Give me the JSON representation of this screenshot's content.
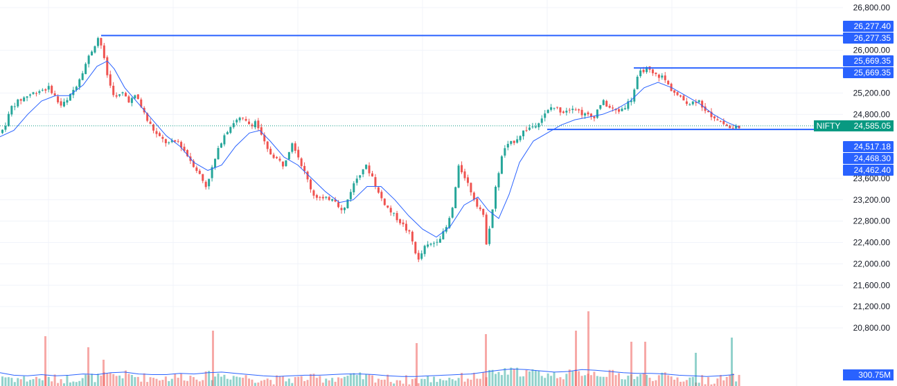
{
  "chart_data": {
    "type": "candlestick",
    "symbol": "NIFTY",
    "last_price": 24585.05,
    "y_ticks": [
      "26,800.00",
      "26,000.00",
      "25,200.00",
      "24,800.00",
      "23,600.00",
      "23,200.00",
      "22,800.00",
      "22,400.00",
      "22,000.00",
      "21,600.00",
      "21,200.00",
      "20,800.00"
    ],
    "y_tick_values": [
      26800,
      26000,
      25200,
      24800,
      23600,
      23200,
      22800,
      22400,
      22000,
      21600,
      21200,
      20800
    ],
    "ylim": [
      20450,
      26950
    ],
    "horizontal_lines": [
      {
        "value": 26277.35,
        "label": "26,277.35"
      },
      {
        "value": 25669.35,
        "label": "25,669.35"
      },
      {
        "value": 24517.18,
        "label": "24,517.18"
      }
    ],
    "price_badges": [
      {
        "label": "26,277.40",
        "value": 26277.4
      },
      {
        "label": "26,277.35",
        "value": 26277.35
      },
      {
        "label": "25,669.35",
        "value": 25669.35
      },
      {
        "label": "25,669.35",
        "value": 25669.35
      },
      {
        "label": "24,517.18",
        "value": 24517.18
      },
      {
        "label": "24,468.30",
        "value": 24468.3
      },
      {
        "label": "24,462.40",
        "value": 24462.4
      }
    ],
    "symbol_badge": {
      "name": "NIFTY",
      "label": "24,585.05"
    },
    "volume_badge": {
      "label": "300.75M"
    },
    "price_path": [
      [
        0,
        24450
      ],
      [
        8,
        24520
      ],
      [
        20,
        24950
      ],
      [
        30,
        25050
      ],
      [
        42,
        25150
      ],
      [
        60,
        25250
      ],
      [
        75,
        25300
      ],
      [
        90,
        24960
      ],
      [
        100,
        25050
      ],
      [
        115,
        25400
      ],
      [
        130,
        25850
      ],
      [
        146,
        26277
      ],
      [
        152,
        25900
      ],
      [
        160,
        25400
      ],
      [
        170,
        25100
      ],
      [
        180,
        25200
      ],
      [
        190,
        25050
      ],
      [
        200,
        25150
      ],
      [
        215,
        24700
      ],
      [
        230,
        24400
      ],
      [
        245,
        24250
      ],
      [
        260,
        24300
      ],
      [
        275,
        24000
      ],
      [
        290,
        23700
      ],
      [
        300,
        23450
      ],
      [
        312,
        23900
      ],
      [
        325,
        24400
      ],
      [
        340,
        24650
      ],
      [
        350,
        24720
      ],
      [
        365,
        24600
      ],
      [
        372,
        24680
      ],
      [
        380,
        24400
      ],
      [
        390,
        24100
      ],
      [
        400,
        24000
      ],
      [
        412,
        23850
      ],
      [
        425,
        24300
      ],
      [
        440,
        23800
      ],
      [
        455,
        23300
      ],
      [
        470,
        23200
      ],
      [
        485,
        23250
      ],
      [
        498,
        22950
      ],
      [
        510,
        23400
      ],
      [
        520,
        23650
      ],
      [
        530,
        23850
      ],
      [
        540,
        23650
      ],
      [
        550,
        23300
      ],
      [
        565,
        23000
      ],
      [
        580,
        22800
      ],
      [
        595,
        22550
      ],
      [
        607,
        22050
      ],
      [
        615,
        22300
      ],
      [
        630,
        22400
      ],
      [
        645,
        22600
      ],
      [
        655,
        22950
      ],
      [
        665,
        23800
      ],
      [
        672,
        23700
      ],
      [
        680,
        23450
      ],
      [
        690,
        23150
      ],
      [
        700,
        22950
      ],
      [
        705,
        22400
      ],
      [
        712,
        22850
      ],
      [
        720,
        23550
      ],
      [
        730,
        24150
      ],
      [
        745,
        24300
      ],
      [
        760,
        24500
      ],
      [
        775,
        24600
      ],
      [
        790,
        24800
      ],
      [
        800,
        24950
      ],
      [
        815,
        24850
      ],
      [
        830,
        24950
      ],
      [
        845,
        24800
      ],
      [
        860,
        24750
      ],
      [
        872,
        25050
      ],
      [
        885,
        24900
      ],
      [
        895,
        24850
      ],
      [
        905,
        24950
      ],
      [
        915,
        25100
      ],
      [
        925,
        25550
      ],
      [
        935,
        25669
      ],
      [
        945,
        25550
      ],
      [
        960,
        25500
      ],
      [
        970,
        25300
      ],
      [
        985,
        25100
      ],
      [
        1000,
        25000
      ],
      [
        1012,
        25100
      ],
      [
        1020,
        24850
      ],
      [
        1035,
        24750
      ],
      [
        1050,
        24600
      ],
      [
        1060,
        24520
      ],
      [
        1067,
        24585
      ]
    ],
    "ma_path": [
      [
        0,
        24380
      ],
      [
        20,
        24500
      ],
      [
        40,
        24800
      ],
      [
        60,
        25050
      ],
      [
        80,
        25150
      ],
      [
        100,
        25150
      ],
      [
        120,
        25350
      ],
      [
        140,
        25700
      ],
      [
        155,
        25800
      ],
      [
        165,
        25650
      ],
      [
        180,
        25300
      ],
      [
        200,
        25000
      ],
      [
        220,
        24700
      ],
      [
        240,
        24400
      ],
      [
        260,
        24200
      ],
      [
        280,
        23900
      ],
      [
        300,
        23750
      ],
      [
        320,
        23850
      ],
      [
        340,
        24200
      ],
      [
        360,
        24450
      ],
      [
        375,
        24500
      ],
      [
        390,
        24300
      ],
      [
        410,
        24000
      ],
      [
        430,
        23850
      ],
      [
        450,
        23600
      ],
      [
        470,
        23350
      ],
      [
        490,
        23150
      ],
      [
        510,
        23200
      ],
      [
        530,
        23450
      ],
      [
        550,
        23450
      ],
      [
        570,
        23200
      ],
      [
        590,
        22900
      ],
      [
        610,
        22650
      ],
      [
        630,
        22500
      ],
      [
        650,
        22700
      ],
      [
        670,
        23100
      ],
      [
        690,
        23250
      ],
      [
        705,
        23000
      ],
      [
        720,
        22850
      ],
      [
        735,
        23300
      ],
      [
        750,
        23900
      ],
      [
        770,
        24300
      ],
      [
        790,
        24450
      ],
      [
        810,
        24600
      ],
      [
        830,
        24700
      ],
      [
        850,
        24750
      ],
      [
        870,
        24800
      ],
      [
        890,
        24900
      ],
      [
        910,
        25050
      ],
      [
        930,
        25300
      ],
      [
        950,
        25400
      ],
      [
        970,
        25300
      ],
      [
        990,
        25150
      ],
      [
        1010,
        25000
      ],
      [
        1030,
        24800
      ],
      [
        1050,
        24650
      ],
      [
        1067,
        24560
      ]
    ],
    "volume_profile": [
      [
        0,
        8
      ],
      [
        20,
        4
      ],
      [
        40,
        3
      ],
      [
        60,
        5
      ],
      [
        80,
        3
      ],
      [
        100,
        4
      ],
      [
        120,
        6
      ],
      [
        140,
        5
      ],
      [
        160,
        8
      ],
      [
        180,
        9
      ],
      [
        200,
        6
      ],
      [
        220,
        5
      ],
      [
        240,
        5
      ],
      [
        260,
        7
      ],
      [
        280,
        6
      ],
      [
        300,
        8
      ],
      [
        320,
        9
      ],
      [
        340,
        7
      ],
      [
        360,
        5
      ],
      [
        380,
        3
      ],
      [
        400,
        2
      ],
      [
        420,
        3
      ],
      [
        440,
        4
      ],
      [
        460,
        4
      ],
      [
        480,
        5
      ],
      [
        500,
        6
      ],
      [
        520,
        6
      ],
      [
        540,
        5
      ],
      [
        560,
        3
      ],
      [
        580,
        2
      ],
      [
        600,
        2
      ],
      [
        620,
        3
      ],
      [
        640,
        4
      ],
      [
        660,
        5
      ],
      [
        680,
        6
      ],
      [
        700,
        9
      ],
      [
        720,
        12
      ],
      [
        740,
        14
      ],
      [
        760,
        13
      ],
      [
        780,
        11
      ],
      [
        800,
        9
      ],
      [
        820,
        10
      ],
      [
        840,
        13
      ],
      [
        860,
        12
      ],
      [
        880,
        10
      ],
      [
        900,
        8
      ],
      [
        920,
        7
      ],
      [
        940,
        7
      ],
      [
        960,
        6
      ],
      [
        980,
        4
      ],
      [
        1000,
        3
      ],
      [
        1020,
        2
      ],
      [
        1040,
        3
      ],
      [
        1060,
        5
      ],
      [
        1067,
        5
      ]
    ],
    "volume_spikes": [
      [
        64,
        72
      ],
      [
        126,
        56
      ],
      [
        148,
        38
      ],
      [
        306,
        80
      ],
      [
        600,
        62
      ],
      [
        700,
        75
      ],
      [
        830,
        80
      ],
      [
        848,
        108
      ],
      [
        910,
        64
      ],
      [
        930,
        64
      ],
      [
        1003,
        48
      ],
      [
        1055,
        70
      ]
    ],
    "colors": {
      "up": "#26a69a",
      "down": "#ef5350",
      "ma": "#2962ff",
      "hline": "#2962ff",
      "grid": "#f0f3fa",
      "symbol_badge": "#089981",
      "last_price_line": "#089981"
    }
  }
}
